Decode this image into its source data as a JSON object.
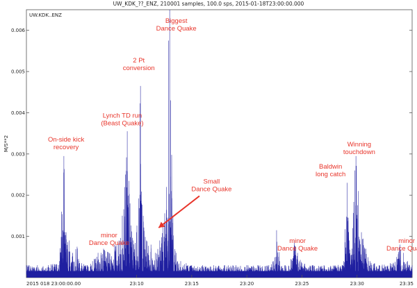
{
  "chart_data": {
    "type": "line",
    "title": "UW_KDK_??_ENZ, 210001 samples, 100.0 sps, 2015-01-18T23:00:00.000",
    "trace_label": "UW.KDK..ENZ",
    "ylabel": "M/S**2",
    "xlabel": "",
    "xlim_minutes": [
      0,
      35
    ],
    "ylim": [
      0,
      0.0065
    ],
    "x_ticks": [
      {
        "minute": 0,
        "label": "2015 018 23:00:00.00"
      },
      {
        "minute": 10,
        "label": "23:10"
      },
      {
        "minute": 15,
        "label": "23:15"
      },
      {
        "minute": 20,
        "label": "23:20"
      },
      {
        "minute": 25,
        "label": "23:25"
      },
      {
        "minute": 30,
        "label": "23:30"
      },
      {
        "minute": 35,
        "label": "23:35"
      }
    ],
    "y_ticks": [
      {
        "value": 0.001,
        "label": "0.001"
      },
      {
        "value": 0.002,
        "label": "0.002"
      },
      {
        "value": 0.003,
        "label": "0.003"
      },
      {
        "value": 0.004,
        "label": "0.004"
      },
      {
        "value": 0.005,
        "label": "0.005"
      },
      {
        "value": 0.006,
        "label": "0.006"
      }
    ],
    "series": [
      {
        "color": "#1f1fa0",
        "baseline": 0.00025,
        "points": [
          [
            0,
            0.0003
          ],
          [
            1,
            0.0003
          ],
          [
            2,
            0.0003
          ],
          [
            3,
            0.0004
          ],
          [
            3.2,
            0.0016
          ],
          [
            3.4,
            0.00295
          ],
          [
            3.6,
            0.0011
          ],
          [
            3.9,
            0.0009
          ],
          [
            4.2,
            0.0006
          ],
          [
            4.6,
            0.00075
          ],
          [
            5.0,
            0.00035
          ],
          [
            5.5,
            0.0003
          ],
          [
            6,
            0.0004
          ],
          [
            6.5,
            0.0006
          ],
          [
            7.0,
            0.0007
          ],
          [
            7.5,
            0.0006
          ],
          [
            8.0,
            0.0008
          ],
          [
            8.4,
            0.0009
          ],
          [
            8.7,
            0.0015
          ],
          [
            9.0,
            0.0025
          ],
          [
            9.15,
            0.00355
          ],
          [
            9.4,
            0.0018
          ],
          [
            9.7,
            0.0009
          ],
          [
            10.0,
            0.0011
          ],
          [
            10.35,
            0.00465
          ],
          [
            10.6,
            0.0015
          ],
          [
            10.9,
            0.0009
          ],
          [
            11.3,
            0.0008
          ],
          [
            11.7,
            0.0006
          ],
          [
            12.1,
            0.0009
          ],
          [
            12.4,
            0.0013
          ],
          [
            12.7,
            0.0022
          ],
          [
            12.9,
            0.00575
          ],
          [
            13.0,
            0.0065
          ],
          [
            13.1,
            0.0043
          ],
          [
            13.3,
            0.0015
          ],
          [
            13.6,
            0.0006
          ],
          [
            14.0,
            0.0004
          ],
          [
            14.5,
            0.00035
          ],
          [
            15,
            0.0003
          ],
          [
            16,
            0.0003
          ],
          [
            17,
            0.0003
          ],
          [
            18,
            0.0003
          ],
          [
            19,
            0.0003
          ],
          [
            20,
            0.0003
          ],
          [
            21,
            0.0003
          ],
          [
            22,
            0.0003
          ],
          [
            22.4,
            0.0004
          ],
          [
            22.7,
            0.00115
          ],
          [
            23.0,
            0.0004
          ],
          [
            23.5,
            0.0003
          ],
          [
            24.0,
            0.00045
          ],
          [
            24.3,
            0.0009
          ],
          [
            24.6,
            0.0006
          ],
          [
            25.0,
            0.00035
          ],
          [
            26,
            0.0003
          ],
          [
            27,
            0.0003
          ],
          [
            28,
            0.0003
          ],
          [
            28.8,
            0.0004
          ],
          [
            29.1,
            0.0023
          ],
          [
            29.3,
            0.0009
          ],
          [
            29.6,
            0.0012
          ],
          [
            29.8,
            0.0026
          ],
          [
            29.9,
            0.00295
          ],
          [
            30.1,
            0.0021
          ],
          [
            30.4,
            0.0011
          ],
          [
            30.8,
            0.0007
          ],
          [
            31.2,
            0.0004
          ],
          [
            32,
            0.0003
          ],
          [
            33,
            0.00035
          ],
          [
            33.6,
            0.0005
          ],
          [
            33.9,
            0.0008
          ],
          [
            34.2,
            0.0006
          ],
          [
            34.6,
            0.0004
          ],
          [
            35,
            0.0003
          ]
        ]
      }
    ],
    "annotations": [
      {
        "lines": [
          "Biggest",
          "Dance Quake"
        ],
        "minute": 13.6,
        "value": 0.00618
      },
      {
        "lines": [
          "2 Pt",
          "conversion"
        ],
        "minute": 10.2,
        "value": 0.00522
      },
      {
        "lines": [
          "Lynch TD run",
          "(Beast Quake)"
        ],
        "minute": 8.7,
        "value": 0.00388
      },
      {
        "lines": [
          "On-side kick",
          "recovery"
        ],
        "minute": 3.6,
        "value": 0.0033
      },
      {
        "lines": [
          "minor",
          "Dance Quake"
        ],
        "minute": 7.5,
        "value": 0.00098
      },
      {
        "lines": [
          "Small",
          "Dance Quake"
        ],
        "minute": 16.8,
        "value": 0.00228
      },
      {
        "lines": [
          "minor",
          "Dance Quake"
        ],
        "minute": 24.6,
        "value": 0.00084
      },
      {
        "lines": [
          "Baldwin",
          "long catch"
        ],
        "minute": 27.6,
        "value": 0.00264
      },
      {
        "lines": [
          "Winning",
          "touchdown"
        ],
        "minute": 30.2,
        "value": 0.00318
      },
      {
        "lines": [
          "minor",
          "Dance Quake"
        ],
        "minute": 34.5,
        "value": 0.00084
      }
    ],
    "arrow": {
      "from_minute": 15.7,
      "from_value": 0.00198,
      "to_minute": 12.0,
      "to_value": 0.00121
    },
    "grid": false,
    "legend": "none"
  }
}
